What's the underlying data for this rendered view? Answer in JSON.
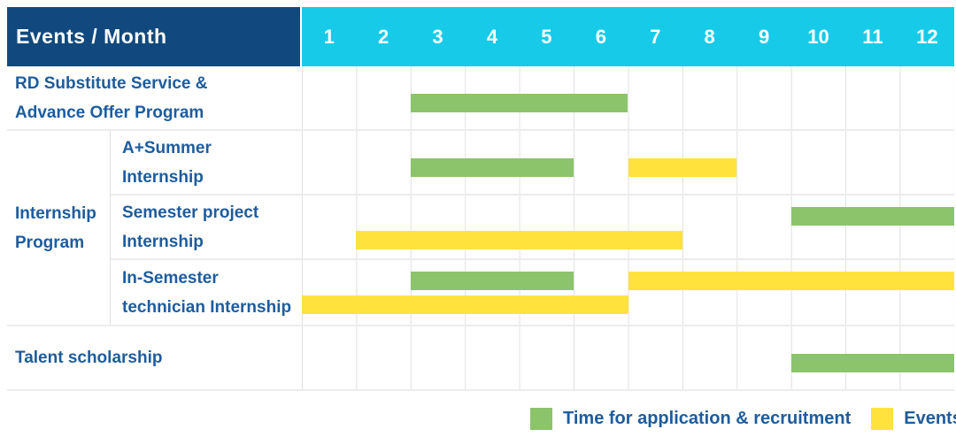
{
  "header": {
    "corner_label": "Events / Month",
    "months": [
      "1",
      "2",
      "3",
      "4",
      "5",
      "6",
      "7",
      "8",
      "9",
      "10",
      "11",
      "12"
    ]
  },
  "colors": {
    "header_navy": "#11497E",
    "header_cyan": "#17CBE8",
    "label_text_blue": "#1D5C9E",
    "application_green": "#8BC46A",
    "events_yellow": "#FFE33C"
  },
  "legend": {
    "items": [
      {
        "label": "Time for application & recruitment",
        "color": "#8BC46A",
        "series": "application"
      },
      {
        "label": "Events",
        "color": "#FFE33C",
        "series": "events"
      }
    ]
  },
  "chart_data": {
    "type": "gantt",
    "x_axis": {
      "label": "Month",
      "ticks": [
        1,
        2,
        3,
        4,
        5,
        6,
        7,
        8,
        9,
        10,
        11,
        12
      ],
      "range": [
        1,
        12
      ]
    },
    "grid": "vertical-month-lines",
    "legend_position": "bottom-right",
    "series": {
      "application": {
        "label": "Time for application & recruitment",
        "color": "#8BC46A"
      },
      "events": {
        "label": "Events",
        "color": "#FFE33C"
      }
    },
    "group_label": "Internship\nProgram",
    "rows": [
      {
        "label": "RD Substitute Service &\nAdvance Offer Program",
        "group": null,
        "bars": [
          {
            "series": "application",
            "start_month": 3,
            "end_month": 6,
            "lane": "single"
          }
        ]
      },
      {
        "label": "A+Summer\nInternship",
        "group": "Internship Program",
        "bars": [
          {
            "series": "application",
            "start_month": 3,
            "end_month": 5,
            "lane": "single"
          },
          {
            "series": "events",
            "start_month": 7,
            "end_month": 8,
            "lane": "single"
          }
        ]
      },
      {
        "label": "Semester project\nInternship",
        "group": "Internship Program",
        "bars": [
          {
            "series": "application",
            "start_month": 10,
            "end_month": 12,
            "lane": "top"
          },
          {
            "series": "events",
            "start_month": 2,
            "end_month": 7,
            "lane": "bottom"
          }
        ]
      },
      {
        "label": "In-Semester\ntechnician Internship",
        "group": "Internship Program",
        "bars": [
          {
            "series": "application",
            "start_month": 3,
            "end_month": 5,
            "lane": "top"
          },
          {
            "series": "events",
            "start_month": 7,
            "end_month": 12,
            "lane": "top"
          },
          {
            "series": "events",
            "start_month": 1,
            "end_month": 6,
            "lane": "bottom"
          }
        ]
      },
      {
        "label": "Talent scholarship",
        "group": null,
        "bars": [
          {
            "series": "application",
            "start_month": 10,
            "end_month": 12,
            "lane": "single"
          }
        ]
      }
    ]
  }
}
